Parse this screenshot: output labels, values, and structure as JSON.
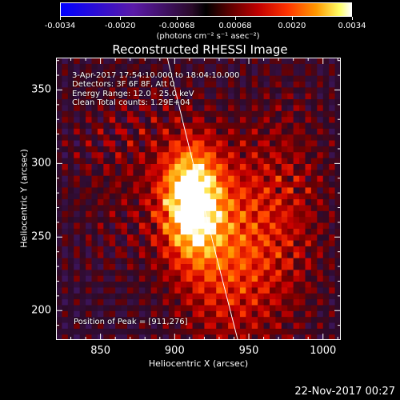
{
  "colorbar": {
    "ticks": [
      "-0.0034",
      "-0.0020",
      "-0.00068",
      "0.00068",
      "0.0020",
      "0.0034"
    ],
    "tick_values": [
      -0.0034,
      -0.002,
      -0.00068,
      0.00068,
      0.002,
      0.0034
    ],
    "range": [
      -0.0034,
      0.0034
    ],
    "unit_label": "(photons cm⁻² s⁻¹ asec⁻²)"
  },
  "chart_data": {
    "type": "heatmap",
    "title": "Reconstructed RHESSI Image",
    "xlabel": "Heliocentric X (arcsec)",
    "ylabel": "Heliocentric Y (arcsec)",
    "xlim": [
      820,
      1012
    ],
    "ylim": [
      180,
      372
    ],
    "x_ticks": [
      850,
      900,
      950,
      1000
    ],
    "y_ticks": [
      200,
      250,
      300,
      350
    ],
    "peak": [
      911,
      276
    ],
    "annotations": {
      "time": "3-Apr-2017 17:54:10.000 to 18:04:10.000",
      "detectors": "Detectors: 3F 6F 8F, Att 0",
      "energy": "Energy Range: 12.0 - 25.0 keV",
      "clean": "Clean    Total counts: 1.29E+04",
      "peak_label": "Position of Peak = [911,276]"
    }
  },
  "timestamp": "22-Nov-2017 00:27"
}
